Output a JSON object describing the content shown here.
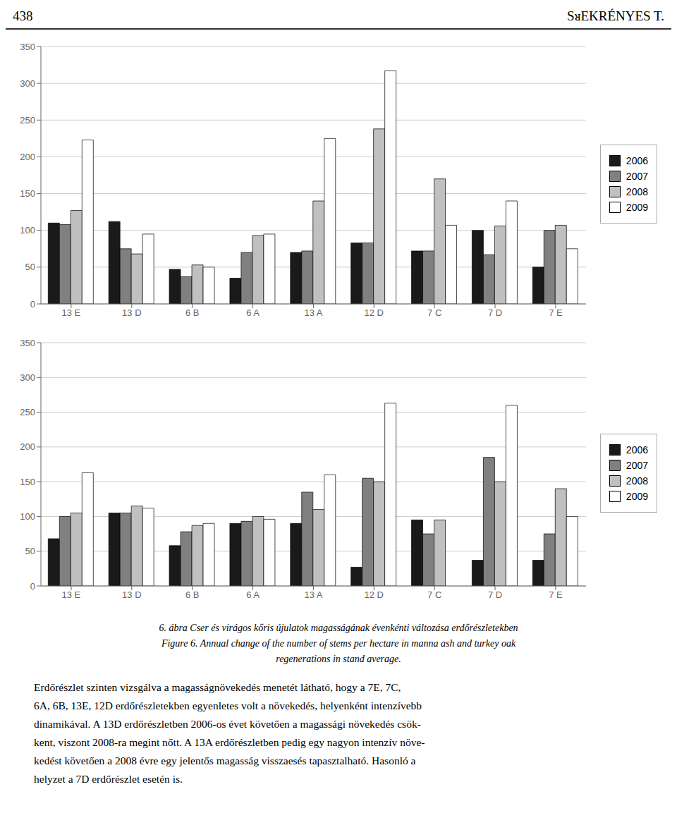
{
  "chart_data": [
    {
      "type": "bar",
      "categories": [
        "13 E",
        "13 D",
        "6 B",
        "6 A",
        "13 A",
        "12 D",
        "7 C",
        "7 D",
        "7 E"
      ],
      "series": [
        {
          "name": "2006",
          "color": "#1a1a1a",
          "values": [
            110,
            112,
            47,
            35,
            70,
            83,
            72,
            100,
            50
          ]
        },
        {
          "name": "2007",
          "color": "#808080",
          "values": [
            108,
            75,
            37,
            70,
            72,
            83,
            72,
            67,
            100
          ]
        },
        {
          "name": "2008",
          "color": "#c0c0c0",
          "values": [
            127,
            68,
            53,
            93,
            140,
            238,
            170,
            106,
            107
          ]
        },
        {
          "name": "2009",
          "color": "#ffffff",
          "values": [
            223,
            95,
            50,
            95,
            225,
            317,
            107,
            140,
            75
          ]
        }
      ],
      "ylim": [
        0,
        350
      ],
      "yticks": [
        0,
        50,
        100,
        150,
        200,
        250,
        300,
        350
      ],
      "grid": true,
      "legend": "right"
    },
    {
      "type": "bar",
      "categories": [
        "13 E",
        "13 D",
        "6 B",
        "6 A",
        "13 A",
        "12 D",
        "7 C",
        "7 D",
        "7 E"
      ],
      "series": [
        {
          "name": "2006",
          "color": "#1a1a1a",
          "values": [
            68,
            105,
            58,
            90,
            90,
            27,
            95,
            37,
            37
          ]
        },
        {
          "name": "2007",
          "color": "#808080",
          "values": [
            100,
            105,
            78,
            93,
            135,
            155,
            75,
            185,
            75
          ]
        },
        {
          "name": "2008",
          "color": "#c0c0c0",
          "values": [
            105,
            115,
            87,
            100,
            110,
            150,
            95,
            150,
            140
          ]
        },
        {
          "name": "2009",
          "color": "#ffffff",
          "values": [
            163,
            112,
            90,
            96,
            160,
            263,
            0,
            260,
            100
          ]
        }
      ],
      "ylim": [
        0,
        350
      ],
      "yticks": [
        0,
        50,
        100,
        150,
        200,
        250,
        300,
        350
      ],
      "grid": true,
      "legend": "right"
    }
  ],
  "annotations": {
    "header": [
      "438",
      "SᴚEKRÉNYES T."
    ],
    "caption": [
      "6. ábra Cser és virágos kőris újulatok magasságának évenkénti változása erdőrészletekben",
      "Figure 6. Annual change of the number of stems per hectare in manna ash and turkey oak",
      "regenerations in stand average."
    ],
    "body": [
      "Erdőrészlet szinten vizsgálva a magasságnövekedés menetét látható, hogy a 7E, 7C,",
      "6A, 6B, 13E, 12D erdőrészletekben egyenletes volt a növekedés, helyenként intenzívebb",
      "dinamikával. A 13D erdőrészletben 2006-os évet követően a magassági növekedés csök-",
      "kent, viszont 2008-ra megint nőtt. A 13A erdőrészletben pedig egy nagyon intenzív növe-",
      "kedést követően a 2008 évre egy jelentős magasság visszaesés tapasztalható. Hasonló a",
      "helyzet a 7D erdőrészlet esetén is."
    ]
  }
}
